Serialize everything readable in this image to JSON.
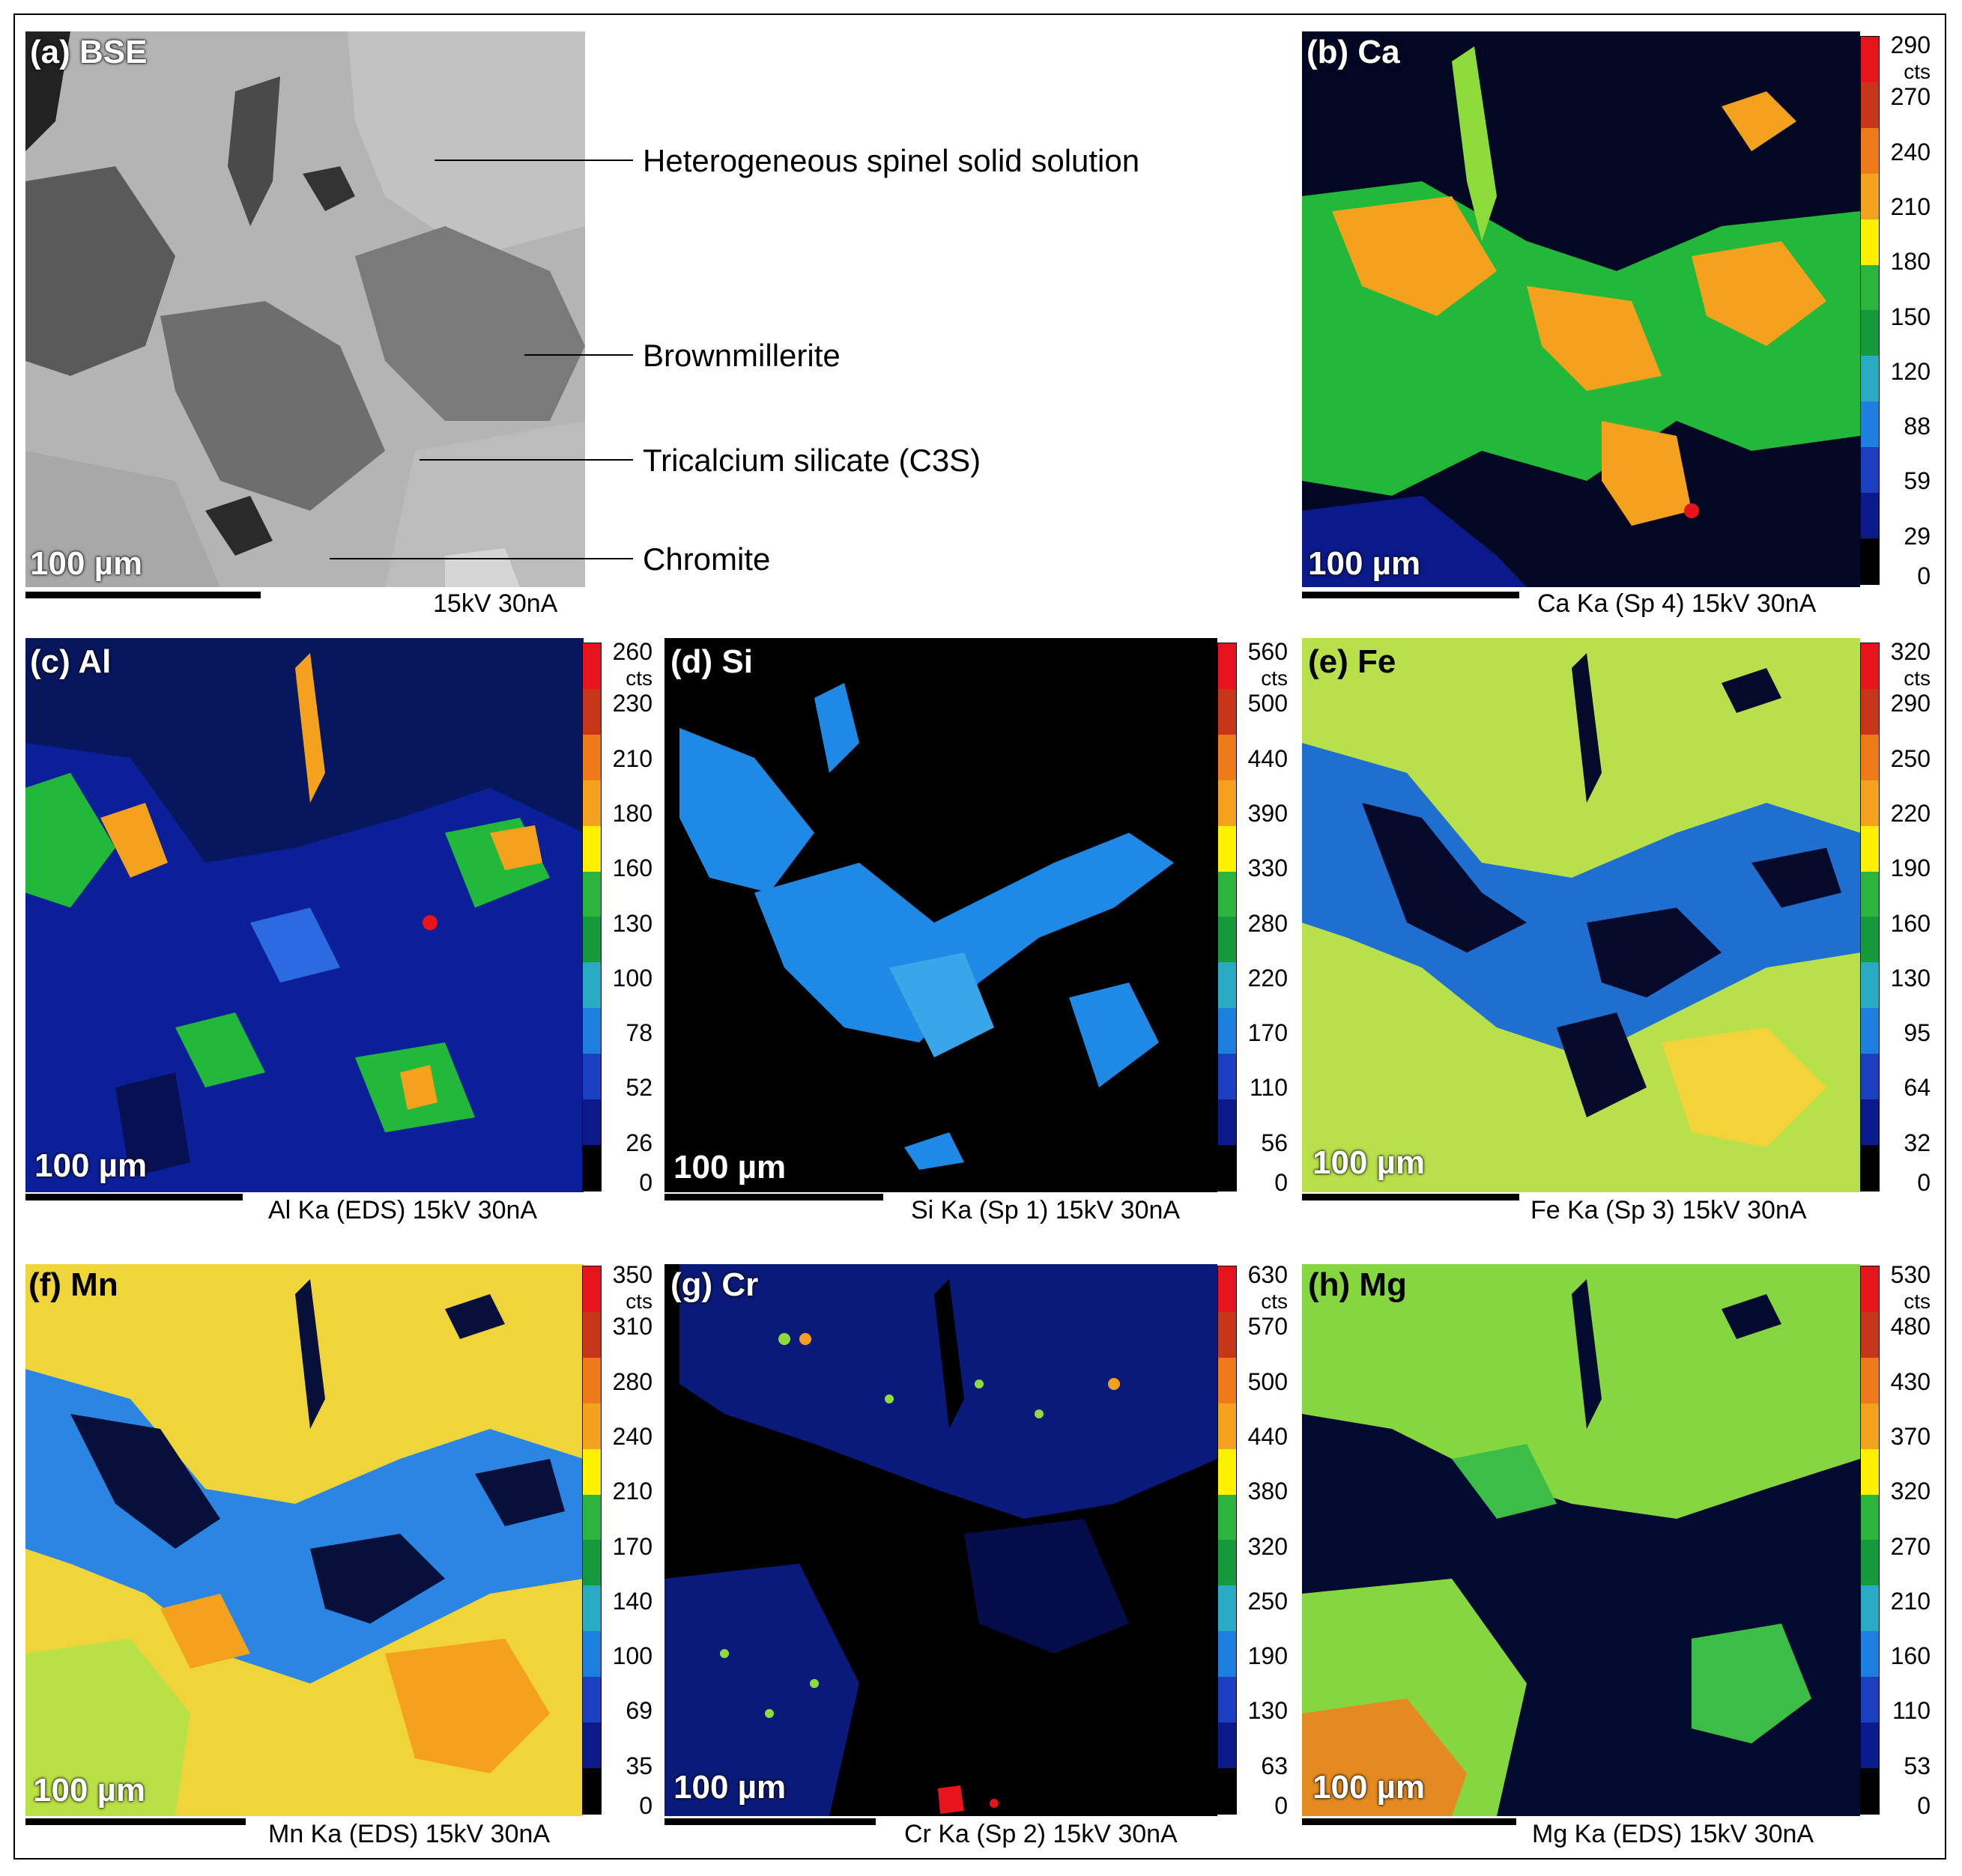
{
  "panels": {
    "a": {
      "label": "(a) BSE",
      "scale": "100 µm",
      "caption": "15kV 30nA",
      "annotations": [
        "Heterogeneous spinel solid solution",
        "Brownmillerite",
        "Tricalcium silicate (C3S)",
        "Chromite"
      ]
    },
    "b": {
      "label": "(b) Ca",
      "scale": "100 µm",
      "caption": "Ca Ka (Sp 4)  15kV 30nA",
      "unit": "cts",
      "ticks": [
        "290",
        "270",
        "240",
        "210",
        "180",
        "150",
        "120",
        "88",
        "59",
        "29",
        "0"
      ]
    },
    "c": {
      "label": "(c) Al",
      "scale": "100 µm",
      "caption": "Al Ka (EDS)  15kV 30nA",
      "unit": "cts",
      "ticks": [
        "260",
        "230",
        "210",
        "180",
        "160",
        "130",
        "100",
        "78",
        "52",
        "26",
        "0"
      ]
    },
    "d": {
      "label": "(d) Si",
      "scale": "100 µm",
      "caption": "Si Ka (Sp 1)  15kV 30nA",
      "unit": "cts",
      "ticks": [
        "560",
        "500",
        "440",
        "390",
        "330",
        "280",
        "220",
        "170",
        "110",
        "56",
        "0"
      ]
    },
    "e": {
      "label": "(e)  Fe",
      "scale": "100 µm",
      "caption": "Fe Ka (Sp 3)  15kV 30nA",
      "unit": "cts",
      "ticks": [
        "320",
        "290",
        "250",
        "220",
        "190",
        "160",
        "130",
        "95",
        "64",
        "32",
        "0"
      ]
    },
    "f": {
      "label": "(f)  Mn",
      "scale": "100 µm",
      "caption": "Mn Ka (EDS)  15kV 30nA",
      "unit": "cts",
      "ticks": [
        "350",
        "310",
        "280",
        "240",
        "210",
        "170",
        "140",
        "100",
        "69",
        "35",
        "0"
      ]
    },
    "g": {
      "label": "(g) Cr",
      "scale": "100 µm",
      "caption": "Cr Ka (Sp 2)  15kV 30nA",
      "unit": "cts",
      "ticks": [
        "630",
        "570",
        "500",
        "440",
        "380",
        "320",
        "250",
        "190",
        "130",
        "63",
        "0"
      ]
    },
    "h": {
      "label": "(h)  Mg",
      "scale": "100 µm",
      "caption": "Mg Ka (EDS)  15kV 30nA",
      "unit": "cts",
      "ticks": [
        "530",
        "480",
        "430",
        "370",
        "320",
        "270",
        "210",
        "160",
        "110",
        "53",
        "0"
      ]
    }
  },
  "colorbar_colors": [
    "#e8141c",
    "#c8361a",
    "#ee7a1a",
    "#f4a21e",
    "#fff200",
    "#2bb53c",
    "#149a3a",
    "#29abc4",
    "#1d7fe0",
    "#1a3fbf",
    "#0b1a8a",
    "#000000"
  ]
}
